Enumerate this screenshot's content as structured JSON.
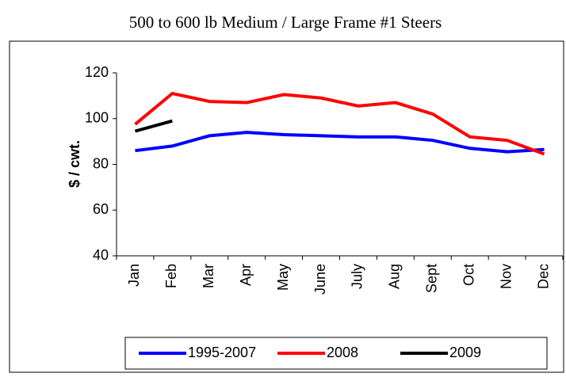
{
  "chart_data": {
    "type": "line",
    "title": "500 to 600 lb Medium / Large Frame #1 Steers",
    "y_label": "$ / cwt.",
    "categories": [
      "Jan",
      "Feb",
      "Mar",
      "Apr",
      "May",
      "June",
      "July",
      "Aug",
      "Sept",
      "Oct",
      "Nov",
      "Dec"
    ],
    "series": [
      {
        "name": "1995-2007",
        "color": "#0000ff",
        "values": [
          86,
          88,
          92.5,
          94,
          93,
          92.5,
          92,
          92,
          90.5,
          87,
          85.5,
          86.5
        ]
      },
      {
        "name": "2008",
        "color": "#ff0000",
        "values": [
          97.5,
          111,
          107.5,
          107,
          110.5,
          109,
          105.5,
          107,
          102,
          92,
          90.5,
          84.5
        ]
      },
      {
        "name": "2009",
        "color": "#000000",
        "values": [
          94.5,
          99,
          null,
          null,
          null,
          null,
          null,
          null,
          null,
          null,
          null,
          null
        ]
      }
    ],
    "ylim": [
      40,
      120
    ],
    "yticks": [
      40,
      60,
      80,
      100,
      120
    ],
    "grid": false,
    "legend": "bottom"
  }
}
